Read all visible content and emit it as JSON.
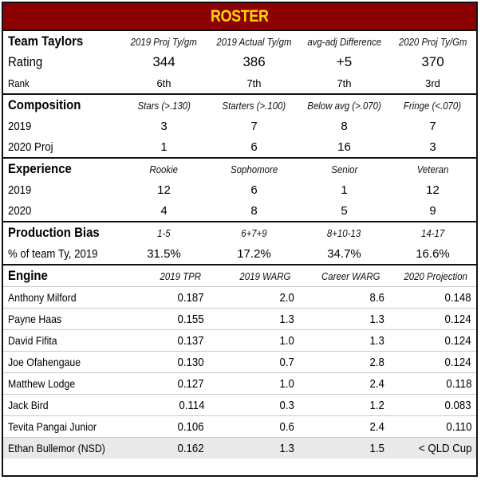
{
  "title": "ROSTER",
  "rating": {
    "heading": "Team Taylors",
    "columns": [
      "2019 Proj Ty/gm",
      "2019 Actual Ty/gm",
      "avg-adj Difference",
      "2020 Proj Ty/Gm"
    ],
    "rows": [
      {
        "label": "Rating",
        "values": [
          "344",
          "386",
          "+5",
          "370"
        ]
      },
      {
        "label": "Rank",
        "values": [
          "6th",
          "7th",
          "7th",
          "3rd"
        ]
      }
    ]
  },
  "composition": {
    "heading": "Composition",
    "columns": [
      "Stars (>.130)",
      "Starters (>.100)",
      "Below avg (>.070)",
      "Fringe (<.070)"
    ],
    "rows": [
      {
        "label": "2019",
        "values": [
          "3",
          "7",
          "8",
          "7"
        ]
      },
      {
        "label": "2020 Proj",
        "values": [
          "1",
          "6",
          "16",
          "3"
        ]
      }
    ]
  },
  "experience": {
    "heading": "Experience",
    "columns": [
      "Rookie",
      "Sophomore",
      "Senior",
      "Veteran"
    ],
    "rows": [
      {
        "label": "2019",
        "values": [
          "12",
          "6",
          "1",
          "12"
        ]
      },
      {
        "label": "2020",
        "values": [
          "4",
          "8",
          "5",
          "9"
        ]
      }
    ]
  },
  "production": {
    "heading": "Production Bias",
    "columns": [
      "1-5",
      "6+7+9",
      "8+10-13",
      "14-17"
    ],
    "rows": [
      {
        "label": "% of team Ty, 2019",
        "values": [
          "31.5%",
          "17.2%",
          "34.7%",
          "16.6%"
        ]
      }
    ]
  },
  "engine": {
    "heading": "Engine",
    "columns": [
      "2019 TPR",
      "2019 WARG",
      "Career WARG",
      "2020 Projection"
    ],
    "shade_color": "#e9e9e9",
    "players": [
      {
        "name": "Anthony Milford",
        "values": [
          "0.187",
          "2.0",
          "8.6",
          "0.148"
        ]
      },
      {
        "name": "Payne Haas",
        "values": [
          "0.155",
          "1.3",
          "1.3",
          "0.124"
        ]
      },
      {
        "name": "David Fifita",
        "values": [
          "0.137",
          "1.0",
          "1.3",
          "0.124"
        ]
      },
      {
        "name": "Joe Ofahengaue",
        "values": [
          "0.130",
          "0.7",
          "2.8",
          "0.124"
        ]
      },
      {
        "name": "Matthew Lodge",
        "values": [
          "0.127",
          "1.0",
          "2.4",
          "0.118"
        ]
      },
      {
        "name": "Jack Bird",
        "values": [
          "0.114",
          "0.3",
          "1.2",
          "0.083"
        ]
      },
      {
        "name": "Tevita Pangai Junior",
        "values": [
          "0.106",
          "0.6",
          "2.4",
          "0.110"
        ]
      },
      {
        "name": "Ethan Bullemor (NSD)",
        "values": [
          "0.162",
          "1.3",
          "1.5",
          "< QLD Cup"
        ]
      }
    ]
  },
  "colors": {
    "banner_bg": "#8b0000",
    "banner_text": "#ffd700",
    "border": "#111111"
  }
}
